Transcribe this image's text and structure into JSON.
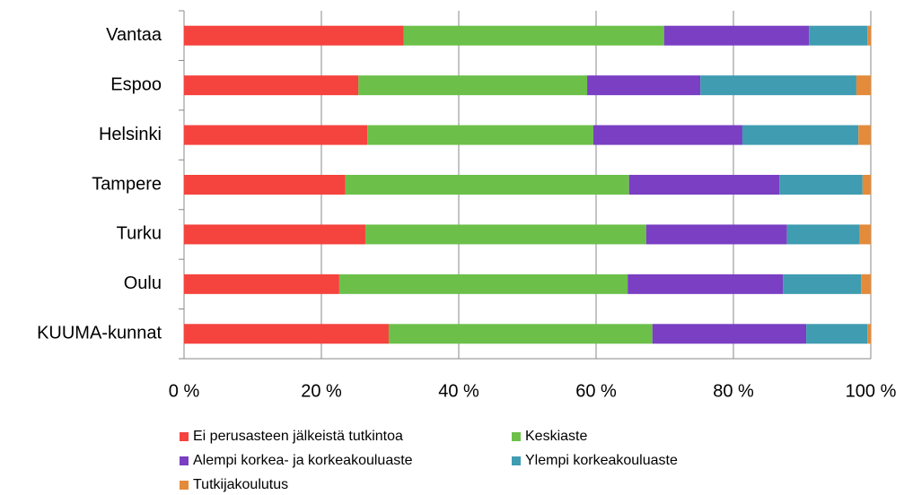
{
  "chart_data": {
    "type": "stacked-bar-horizontal",
    "categories": [
      "Vantaa",
      "Espoo",
      "Helsinki",
      "Tampere",
      "Turku",
      "Oulu",
      "KUUMA-kunnat"
    ],
    "series": [
      {
        "name": "Ei perusasteen jälkeistä tutkintoa",
        "color": "#f5433e",
        "values": [
          32.0,
          25.4,
          26.7,
          23.5,
          26.4,
          22.6,
          29.8
        ]
      },
      {
        "name": "Keskiaste",
        "color": "#6cc04a",
        "values": [
          37.9,
          33.3,
          32.9,
          41.3,
          40.9,
          42.0,
          38.4
        ]
      },
      {
        "name": "Alempi korkea- ja korkeakouluaste",
        "color": "#7a3fc3",
        "values": [
          21.1,
          16.5,
          21.7,
          21.9,
          20.5,
          22.6,
          22.4
        ]
      },
      {
        "name": "Ylempi korkeakouluaste",
        "color": "#3f9cb1",
        "values": [
          8.5,
          22.7,
          16.9,
          12.1,
          10.6,
          11.4,
          8.9
        ]
      },
      {
        "name": "Tutkijakoulutus",
        "color": "#e38b3b",
        "values": [
          0.5,
          2.1,
          1.8,
          1.2,
          1.6,
          1.4,
          0.5
        ]
      }
    ],
    "xlim": [
      0,
      100
    ],
    "xticks": [
      {
        "value": 0,
        "label": "0 %"
      },
      {
        "value": 20,
        "label": "20 %"
      },
      {
        "value": 40,
        "label": "40 %"
      },
      {
        "value": 60,
        "label": "60 %"
      },
      {
        "value": 80,
        "label": "80 %"
      },
      {
        "value": 100,
        "label": "100 %"
      }
    ],
    "grid": true
  }
}
